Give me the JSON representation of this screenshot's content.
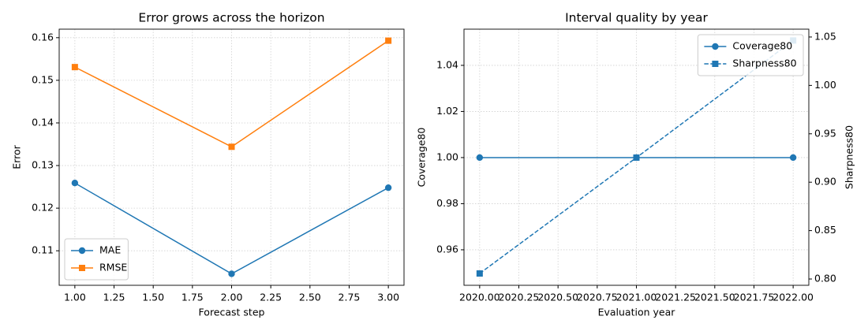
{
  "chart_data": [
    {
      "type": "line",
      "title": "Error grows across the horizon",
      "xlabel": "Forecast step",
      "ylabel": "Error",
      "x": [
        1,
        2,
        3
      ],
      "series": [
        {
          "name": "MAE",
          "color": "#1f77b4",
          "marker": "circle",
          "linestyle": "solid",
          "values": [
            0.1259,
            0.1046,
            0.1248
          ]
        },
        {
          "name": "RMSE",
          "color": "#ff7f0e",
          "marker": "square",
          "linestyle": "solid",
          "values": [
            0.1531,
            0.1344,
            0.1593
          ]
        }
      ],
      "xlim": [
        0.9,
        3.1
      ],
      "xticks": [
        {
          "value": 1,
          "label": "1.00"
        },
        {
          "value": 1.25,
          "label": "1.25"
        },
        {
          "value": 1.5,
          "label": "1.50"
        },
        {
          "value": 1.75,
          "label": "1.75"
        },
        {
          "value": 2,
          "label": "2.00"
        },
        {
          "value": 2.25,
          "label": "2.25"
        },
        {
          "value": 2.5,
          "label": "2.50"
        },
        {
          "value": 2.75,
          "label": "2.75"
        },
        {
          "value": 3,
          "label": "3.00"
        }
      ],
      "ylim": [
        0.1019,
        0.162
      ],
      "yticks": [
        0.11,
        0.12,
        0.13,
        0.14,
        0.15,
        0.16
      ],
      "grid": true,
      "legend": "lower left"
    },
    {
      "type": "line",
      "title": "Interval quality by year",
      "xlabel": "Evaluation year",
      "ylabel": "Coverage80",
      "y2label": "Sharpness80",
      "x": [
        2020,
        2021,
        2022
      ],
      "series": [
        {
          "name": "Coverage80",
          "color": "#1f77b4",
          "marker": "circle",
          "linestyle": "solid",
          "values": [
            1.0,
            1.0,
            1.0
          ]
        },
        {
          "name": "Sharpness80",
          "color": "#1f77b4",
          "marker": "square",
          "linestyle": "dashed",
          "axis": "y2",
          "values": [
            0.8057,
            0.9254,
            1.0464
          ]
        }
      ],
      "xlim": [
        2019.9,
        2022.1
      ],
      "xticks": [
        {
          "value": 2020,
          "label": "2020.00"
        },
        {
          "value": 2020.25,
          "label": "2020.25"
        },
        {
          "value": 2020.5,
          "label": "2020.50"
        },
        {
          "value": 2020.75,
          "label": "2020.75"
        },
        {
          "value": 2021,
          "label": "2021.00"
        },
        {
          "value": 2021.25,
          "label": "2021.25"
        },
        {
          "value": 2021.5,
          "label": "2021.50"
        },
        {
          "value": 2021.75,
          "label": "2021.75"
        },
        {
          "value": 2022,
          "label": "2022.00"
        }
      ],
      "ylim": [
        0.9446,
        1.0557
      ],
      "yticks": [
        0.96,
        0.98,
        {
          "value": 1.0,
          "label": "1.00"
        },
        1.02,
        1.04
      ],
      "y2lim": [
        0.7935,
        1.0581
      ],
      "y2ticks": [
        {
          "value": 0.8,
          "label": "0.80"
        },
        0.85,
        {
          "value": 0.9,
          "label": "0.90"
        },
        0.95,
        {
          "value": 1.0,
          "label": "1.00"
        },
        1.05
      ],
      "grid": true,
      "legend": "upper right"
    }
  ]
}
